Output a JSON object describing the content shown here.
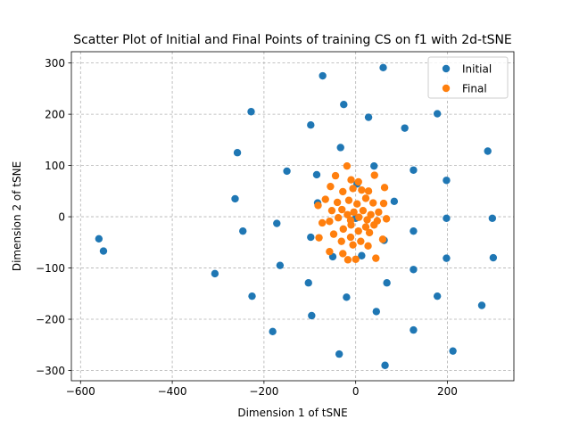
{
  "chart_data": {
    "type": "scatter",
    "title": "Scatter Plot of Initial and Final Points of training CS on f1 with 2d-tSNE",
    "xlabel": "Dimension 1 of tSNE",
    "ylabel": "Dimension 2 of tSNE",
    "xlim": [
      -620,
      345
    ],
    "ylim": [
      -320,
      322
    ],
    "xticks": [
      -600,
      -400,
      -200,
      0,
      200
    ],
    "yticks": [
      -300,
      -200,
      -100,
      0,
      100,
      200,
      300
    ],
    "xtick_labels": [
      "−600",
      "−400",
      "−200",
      "0",
      "200"
    ],
    "ytick_labels": [
      "−300",
      "−200",
      "−100",
      "0",
      "100",
      "200",
      "300"
    ],
    "grid": true,
    "legend_position": "top-right",
    "series": [
      {
        "name": "Initial",
        "color": "#1f77b4",
        "points": [
          [
            -72,
            275
          ],
          [
            60,
            291
          ],
          [
            -26,
            219
          ],
          [
            -228,
            205
          ],
          [
            28,
            194
          ],
          [
            178,
            201
          ],
          [
            -98,
            179
          ],
          [
            107,
            173
          ],
          [
            -258,
            125
          ],
          [
            -33,
            135
          ],
          [
            288,
            128
          ],
          [
            -150,
            89
          ],
          [
            40,
            99
          ],
          [
            126,
            91
          ],
          [
            -85,
            82
          ],
          [
            198,
            71
          ],
          [
            -263,
            35
          ],
          [
            -83,
            27
          ],
          [
            84,
            30
          ],
          [
            3,
            64
          ],
          [
            0,
            -3
          ],
          [
            198,
            -3
          ],
          [
            298,
            -3
          ],
          [
            -172,
            -13
          ],
          [
            -246,
            -28
          ],
          [
            -98,
            -40
          ],
          [
            62,
            -46
          ],
          [
            126,
            -28
          ],
          [
            -560,
            -43
          ],
          [
            -550,
            -67
          ],
          [
            -165,
            -95
          ],
          [
            -50,
            -78
          ],
          [
            13,
            -76
          ],
          [
            198,
            -81
          ],
          [
            300,
            -80
          ],
          [
            -307,
            -111
          ],
          [
            126,
            -103
          ],
          [
            -103,
            -129
          ],
          [
            68,
            -129
          ],
          [
            -226,
            -155
          ],
          [
            -20,
            -157
          ],
          [
            178,
            -155
          ],
          [
            275,
            -173
          ],
          [
            -96,
            -193
          ],
          [
            45,
            -185
          ],
          [
            -181,
            -224
          ],
          [
            126,
            -221
          ],
          [
            -36,
            -268
          ],
          [
            212,
            -262
          ],
          [
            64,
            -290
          ]
        ]
      },
      {
        "name": "Final",
        "color": "#ff7f0e",
        "points": [
          [
            -19,
            99
          ],
          [
            -44,
            80
          ],
          [
            -10,
            72
          ],
          [
            6,
            68
          ],
          [
            41,
            81
          ],
          [
            -55,
            59
          ],
          [
            -28,
            49
          ],
          [
            -6,
            55
          ],
          [
            13,
            52
          ],
          [
            28,
            50
          ],
          [
            63,
            57
          ],
          [
            -66,
            34
          ],
          [
            -40,
            28
          ],
          [
            -15,
            32
          ],
          [
            3,
            25
          ],
          [
            22,
            36
          ],
          [
            38,
            27
          ],
          [
            61,
            26
          ],
          [
            -82,
            22
          ],
          [
            -52,
            12
          ],
          [
            -30,
            14
          ],
          [
            -18,
            4
          ],
          [
            -4,
            9
          ],
          [
            16,
            12
          ],
          [
            33,
            4
          ],
          [
            50,
            9
          ],
          [
            -73,
            -12
          ],
          [
            -57,
            -9
          ],
          [
            -38,
            -2
          ],
          [
            -11,
            -7
          ],
          [
            7,
            -1
          ],
          [
            25,
            -6
          ],
          [
            47,
            -8
          ],
          [
            67,
            -4
          ],
          [
            -48,
            -34
          ],
          [
            -27,
            -24
          ],
          [
            -10,
            -16
          ],
          [
            6,
            -28
          ],
          [
            22,
            -20
          ],
          [
            40,
            -16
          ],
          [
            -80,
            -41
          ],
          [
            -31,
            -48
          ],
          [
            -11,
            -40
          ],
          [
            11,
            -48
          ],
          [
            30,
            -31
          ],
          [
            59,
            -44
          ],
          [
            -57,
            -68
          ],
          [
            -28,
            -72
          ],
          [
            -6,
            -55
          ],
          [
            27,
            -57
          ],
          [
            0,
            -83
          ],
          [
            44,
            -81
          ],
          [
            -17,
            -84
          ]
        ]
      }
    ]
  }
}
